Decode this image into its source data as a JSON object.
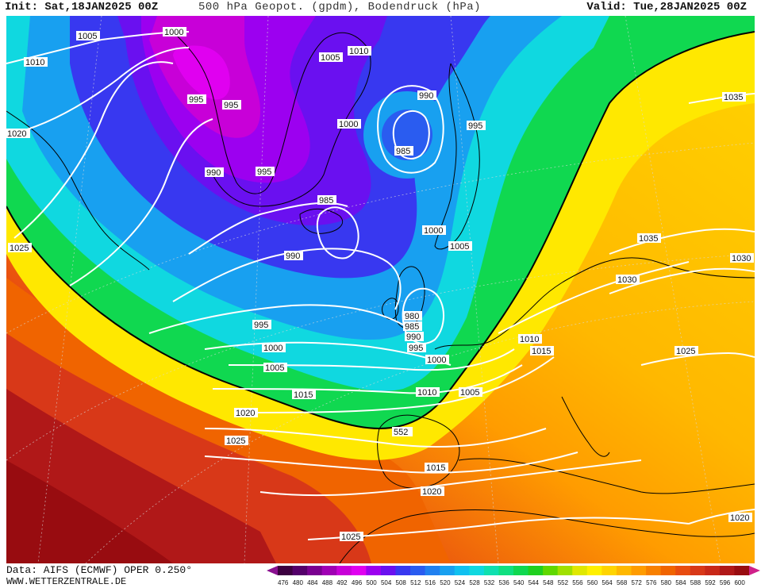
{
  "header": {
    "init": "Init: Sat,18JAN2025 00Z",
    "title": "500 hPa Geopot. (gpdm), Bodendruck (hPa)",
    "valid": "Valid: Tue,28JAN2025 00Z"
  },
  "footer": {
    "data_source": "Data: AIFS (ECMWF) OPER 0.250°",
    "website": "WWW.WETTERZENTRALE.DE"
  },
  "legend": {
    "levels": [
      "476",
      "480",
      "484",
      "488",
      "492",
      "496",
      "500",
      "504",
      "508",
      "512",
      "516",
      "520",
      "524",
      "528",
      "532",
      "536",
      "540",
      "544",
      "548",
      "552",
      "556",
      "560",
      "564",
      "568",
      "572",
      "576",
      "580",
      "584",
      "588",
      "592",
      "596",
      "600"
    ],
    "colors": [
      "#3c0040",
      "#54006a",
      "#7a0090",
      "#a000b4",
      "#c800d8",
      "#e000f0",
      "#9c00f0",
      "#6a10f0",
      "#3838f0",
      "#2a5cf0",
      "#2080f0",
      "#18a0f0",
      "#10c0f0",
      "#10d8e0",
      "#10e0b0",
      "#10e080",
      "#10d850",
      "#20d020",
      "#60d800",
      "#a0e000",
      "#e0e800",
      "#fff000",
      "#ffd400",
      "#ffb800",
      "#ff9c00",
      "#f88000",
      "#f06400",
      "#e84c10",
      "#d83818",
      "#c82818",
      "#b01818",
      "#980c10"
    ],
    "arrow_left_color": "#8a1090",
    "arrow_right_color": "#d0208a"
  },
  "map": {
    "isobar_labels": [
      "1005",
      "1000",
      "1010",
      "1005",
      "1010",
      "995",
      "995",
      "990",
      "985",
      "995",
      "1020",
      "1000",
      "990",
      "995",
      "985",
      "1000",
      "1005",
      "990",
      "1025",
      "980",
      "985",
      "990",
      "995",
      "995",
      "1000",
      "1000",
      "1005",
      "1005",
      "1010",
      "1015",
      "1010",
      "1005",
      "1020",
      "1025",
      "1015",
      "1020",
      "1025",
      "1035",
      "1035",
      "1030",
      "1030",
      "1010",
      "1015",
      "1025",
      "1020"
    ],
    "height_label": "552",
    "colors": {
      "isobar": "#ffffff",
      "contour_552": "#000000",
      "coast": "#000000",
      "graticule": "#d8d8d8"
    }
  }
}
